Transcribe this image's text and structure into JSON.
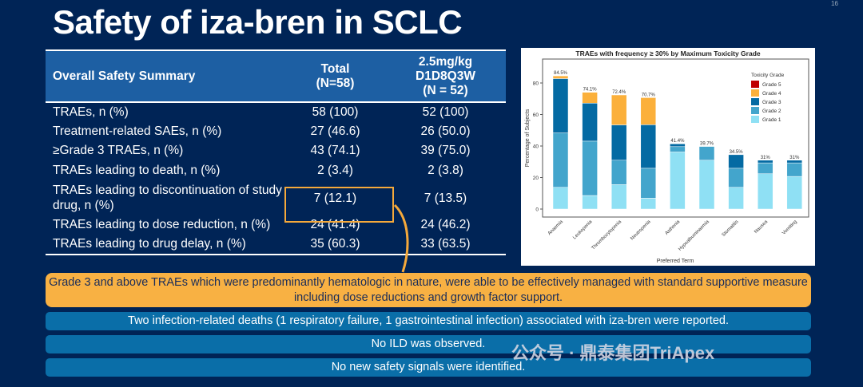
{
  "title": "Safety of iza-bren in SCLC",
  "page_number": "16",
  "table": {
    "headers": [
      "Overall Safety Summary",
      "Total\n(N=58)",
      "2.5mg/kg\nD1D8Q3W\n(N = 52)"
    ],
    "rows": [
      [
        "TRAEs, n (%)",
        "58 (100)",
        "52 (100)"
      ],
      [
        "Treatment-related SAEs, n (%)",
        "27 (46.6)",
        "26 (50.0)"
      ],
      [
        "≥Grade 3 TRAEs, n (%)",
        "43 (74.1)",
        "39 (75.0)"
      ],
      [
        "TRAEs leading to death, n (%)",
        "2 (3.4)",
        "2 (3.8)"
      ],
      [
        "TRAEs leading to discontinuation of study drug, n (%)",
        "7 (12.1)",
        "7 (13.5)"
      ],
      [
        "TRAEs leading to dose reduction, n (%)",
        "24 (41.4)",
        "24 (46.2)"
      ],
      [
        "TRAEs leading to drug delay, n (%)",
        "35 (60.3)",
        "33 (63.5)"
      ]
    ]
  },
  "chart_data": {
    "type": "bar",
    "stacked": true,
    "title": "TRAEs with frequency ≥ 30% by Maximum Toxicity Grade",
    "xlabel": "Preferred Term",
    "ylabel": "Percentage of Subjects",
    "ylim": [
      0,
      93
    ],
    "yticks": [
      0,
      20,
      40,
      60,
      80
    ],
    "categories": [
      "Anaemia",
      "Leukopenia",
      "Thrombocytopenia",
      "Neutropenia",
      "Asthenia",
      "Hypoalbuminaemia",
      "Stomatitis",
      "Nausea",
      "Vomiting"
    ],
    "totals_labels": [
      "84.5%",
      "74.1%",
      "72.4%",
      "70.7%",
      "41.4%",
      "39.7%",
      "34.5%",
      "31%",
      "31%"
    ],
    "legend_title": "Toxicity Grade",
    "legend": "top-right",
    "series": [
      {
        "name": "Grade 1",
        "color": "#8fe0f4",
        "values": [
          13.8,
          8.6,
          15.5,
          6.9,
          36.2,
          31.0,
          13.8,
          22.4,
          20.7
        ]
      },
      {
        "name": "Grade 2",
        "color": "#43a5cc",
        "values": [
          34.5,
          34.5,
          15.5,
          19.0,
          3.4,
          8.7,
          12.1,
          6.9,
          8.6
        ]
      },
      {
        "name": "Grade 3",
        "color": "#046aa3",
        "values": [
          34.5,
          24.1,
          22.4,
          27.6,
          1.8,
          0,
          8.6,
          1.7,
          1.7
        ]
      },
      {
        "name": "Grade 4",
        "color": "#fbb03b",
        "values": [
          1.7,
          6.9,
          19.0,
          17.2,
          0,
          0,
          0,
          0,
          0
        ]
      },
      {
        "name": "Grade 5",
        "color": "#c00000",
        "values": [
          0,
          0,
          0,
          0,
          0,
          0,
          0,
          0,
          0
        ]
      }
    ]
  },
  "banner": "Grade 3 and above TRAEs which were predominantly hematologic in nature, were able to be effectively managed with standard supportive measure including dose reductions and growth factor support.",
  "notes": [
    "Two infection-related deaths (1 respiratory failure, 1 gastrointestinal infection) associated with iza-bren were reported.",
    "No ILD was observed.",
    "No new safety signals were identified."
  ],
  "watermark": "公众号 · 鼎泰集团TriApex",
  "colors": {
    "background": "#002456",
    "header": "#1d5fa3",
    "highlight": "#f5a93b",
    "note_bar": "#0a6ea8"
  }
}
